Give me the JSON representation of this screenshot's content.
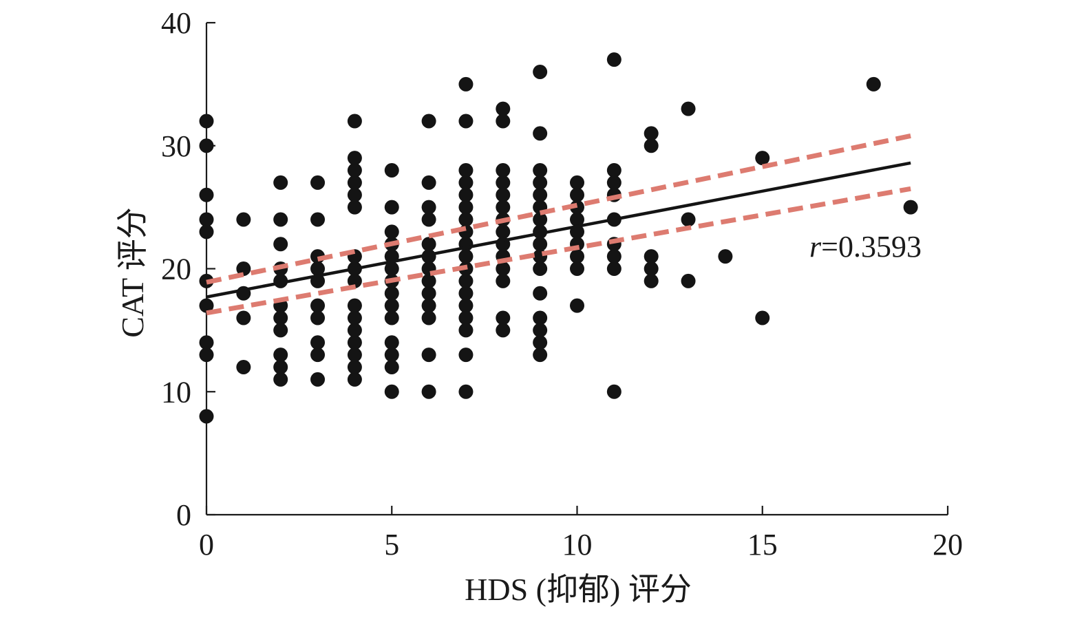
{
  "chart_data": {
    "type": "scatter",
    "xlabel": "HDS (抑郁) 评分",
    "ylabel": "CAT 评分",
    "xlim": [
      0,
      20
    ],
    "ylim": [
      0,
      40
    ],
    "x_ticks": [
      0,
      5,
      10,
      15,
      20
    ],
    "y_ticks": [
      0,
      10,
      20,
      30,
      40
    ],
    "annotation": {
      "prefix": "r",
      "value": "=0.3593"
    },
    "regression": {
      "x": [
        0,
        19
      ],
      "y": [
        17.7,
        28.6
      ]
    },
    "ci_upper": {
      "x": [
        0,
        19
      ],
      "y": [
        18.9,
        30.8
      ]
    },
    "ci_lower": {
      "x": [
        0,
        19
      ],
      "y": [
        16.4,
        26.5
      ]
    },
    "colors": {
      "points": "#141414",
      "fit_line": "#141414",
      "ci_lines": "#dd7b70",
      "axes": "#1a1a1a"
    },
    "points": [
      [
        0,
        32
      ],
      [
        0,
        30
      ],
      [
        0,
        26
      ],
      [
        0,
        24
      ],
      [
        0,
        23
      ],
      [
        0,
        19
      ],
      [
        0,
        17
      ],
      [
        0,
        14
      ],
      [
        0,
        13
      ],
      [
        0,
        8
      ],
      [
        1,
        24
      ],
      [
        1,
        20
      ],
      [
        1,
        18
      ],
      [
        1,
        16
      ],
      [
        1,
        12
      ],
      [
        2,
        27
      ],
      [
        2,
        24
      ],
      [
        2,
        22
      ],
      [
        2,
        20
      ],
      [
        2,
        19
      ],
      [
        2,
        17
      ],
      [
        2,
        16
      ],
      [
        2,
        15
      ],
      [
        2,
        13
      ],
      [
        2,
        12
      ],
      [
        2,
        11
      ],
      [
        3,
        27
      ],
      [
        3,
        24
      ],
      [
        3,
        21
      ],
      [
        3,
        20
      ],
      [
        3,
        19
      ],
      [
        3,
        17
      ],
      [
        3,
        16
      ],
      [
        3,
        14
      ],
      [
        3,
        13
      ],
      [
        3,
        11
      ],
      [
        4,
        32
      ],
      [
        4,
        29
      ],
      [
        4,
        28
      ],
      [
        4,
        27
      ],
      [
        4,
        26
      ],
      [
        4,
        25
      ],
      [
        4,
        21
      ],
      [
        4,
        20
      ],
      [
        4,
        19
      ],
      [
        4,
        17
      ],
      [
        4,
        16
      ],
      [
        4,
        15
      ],
      [
        4,
        14
      ],
      [
        4,
        13
      ],
      [
        4,
        12
      ],
      [
        4,
        11
      ],
      [
        5,
        28
      ],
      [
        5,
        25
      ],
      [
        5,
        23
      ],
      [
        5,
        22
      ],
      [
        5,
        21
      ],
      [
        5,
        20
      ],
      [
        5,
        19
      ],
      [
        5,
        18
      ],
      [
        5,
        17
      ],
      [
        5,
        16
      ],
      [
        5,
        14
      ],
      [
        5,
        13
      ],
      [
        5,
        12
      ],
      [
        5,
        10
      ],
      [
        6,
        32
      ],
      [
        6,
        27
      ],
      [
        6,
        25
      ],
      [
        6,
        24
      ],
      [
        6,
        22
      ],
      [
        6,
        21
      ],
      [
        6,
        20
      ],
      [
        6,
        19
      ],
      [
        6,
        18
      ],
      [
        6,
        17
      ],
      [
        6,
        16
      ],
      [
        6,
        13
      ],
      [
        6,
        10
      ],
      [
        7,
        35
      ],
      [
        7,
        32
      ],
      [
        7,
        28
      ],
      [
        7,
        27
      ],
      [
        7,
        26
      ],
      [
        7,
        25
      ],
      [
        7,
        24
      ],
      [
        7,
        23
      ],
      [
        7,
        22
      ],
      [
        7,
        21
      ],
      [
        7,
        20
      ],
      [
        7,
        19
      ],
      [
        7,
        18
      ],
      [
        7,
        17
      ],
      [
        7,
        16
      ],
      [
        7,
        15
      ],
      [
        7,
        13
      ],
      [
        7,
        10
      ],
      [
        8,
        33
      ],
      [
        8,
        32
      ],
      [
        8,
        28
      ],
      [
        8,
        27
      ],
      [
        8,
        26
      ],
      [
        8,
        25
      ],
      [
        8,
        24
      ],
      [
        8,
        23
      ],
      [
        8,
        22
      ],
      [
        8,
        21
      ],
      [
        8,
        20
      ],
      [
        8,
        19
      ],
      [
        8,
        16
      ],
      [
        8,
        15
      ],
      [
        9,
        36
      ],
      [
        9,
        31
      ],
      [
        9,
        28
      ],
      [
        9,
        27
      ],
      [
        9,
        26
      ],
      [
        9,
        25
      ],
      [
        9,
        24
      ],
      [
        9,
        23
      ],
      [
        9,
        22
      ],
      [
        9,
        21
      ],
      [
        9,
        20
      ],
      [
        9,
        18
      ],
      [
        9,
        16
      ],
      [
        9,
        15
      ],
      [
        9,
        14
      ],
      [
        9,
        13
      ],
      [
        10,
        27
      ],
      [
        10,
        26
      ],
      [
        10,
        25
      ],
      [
        10,
        24
      ],
      [
        10,
        23
      ],
      [
        10,
        22
      ],
      [
        10,
        21
      ],
      [
        10,
        20
      ],
      [
        10,
        17
      ],
      [
        11,
        37
      ],
      [
        11,
        28
      ],
      [
        11,
        27
      ],
      [
        11,
        26
      ],
      [
        11,
        24
      ],
      [
        11,
        22
      ],
      [
        11,
        21
      ],
      [
        11,
        20
      ],
      [
        11,
        10
      ],
      [
        12,
        31
      ],
      [
        12,
        30
      ],
      [
        12,
        21
      ],
      [
        12,
        20
      ],
      [
        12,
        19
      ],
      [
        13,
        33
      ],
      [
        13,
        24
      ],
      [
        13,
        19
      ],
      [
        14,
        21
      ],
      [
        15,
        29
      ],
      [
        15,
        16
      ],
      [
        18,
        35
      ],
      [
        19,
        25
      ]
    ]
  }
}
